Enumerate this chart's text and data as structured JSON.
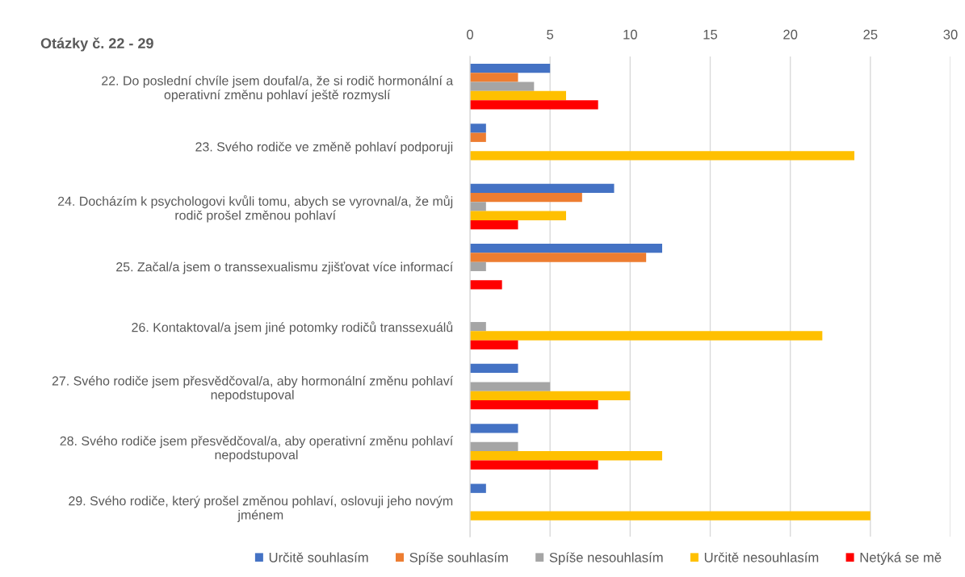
{
  "chart_data": {
    "type": "bar",
    "orientation": "horizontal",
    "title": "Otázky č. 22 - 29",
    "categories": [
      "22. Do poslední chvíle jsem doufal/a, že si rodič hormonální a operativní změnu pohlaví ještě rozmyslí",
      "23. Svého rodiče ve změně pohlaví podporuji",
      "24. Docházím k psychologovi kvůli tomu, abych se vyrovnal/a, že můj rodič prošel změnou pohlaví",
      "25. Začal/a jsem o transsexualismu zjišťovat více informací",
      "26. Kontaktoval/a jsem jiné potomky rodičů transsexuálů",
      "27. Svého rodiče jsem přesvědčoval/a, aby hormonální změnu pohlaví nepodstupoval",
      "28. Svého rodiče jsem přesvědčoval/a, aby operativní změnu pohlaví nepodstupoval",
      "29. Svého rodiče, který prošel změnou pohlaví, oslovuji jeho novým jménem"
    ],
    "series": [
      {
        "name": "Určitě souhlasím",
        "color": "#4472c4",
        "values": [
          5,
          1,
          9,
          12,
          0,
          3,
          3,
          1
        ]
      },
      {
        "name": "Spíše souhlasím",
        "color": "#ed7d31",
        "values": [
          3,
          1,
          7,
          11,
          0,
          0,
          0,
          0
        ]
      },
      {
        "name": "Spíše nesouhlasím",
        "color": "#a5a5a5",
        "values": [
          4,
          0,
          1,
          1,
          1,
          5,
          3,
          0
        ]
      },
      {
        "name": "Určitě nesouhlasím",
        "color": "#ffc000",
        "values": [
          6,
          24,
          6,
          0,
          22,
          10,
          12,
          25
        ]
      },
      {
        "name": "Netýká se mě",
        "color": "#ff0000",
        "values": [
          8,
          0,
          3,
          2,
          3,
          8,
          8,
          0
        ]
      }
    ],
    "xlim": [
      0,
      30
    ],
    "xticks": [
      0,
      5,
      10,
      15,
      20,
      25,
      30
    ],
    "grid": "x",
    "legend": "bottom"
  }
}
